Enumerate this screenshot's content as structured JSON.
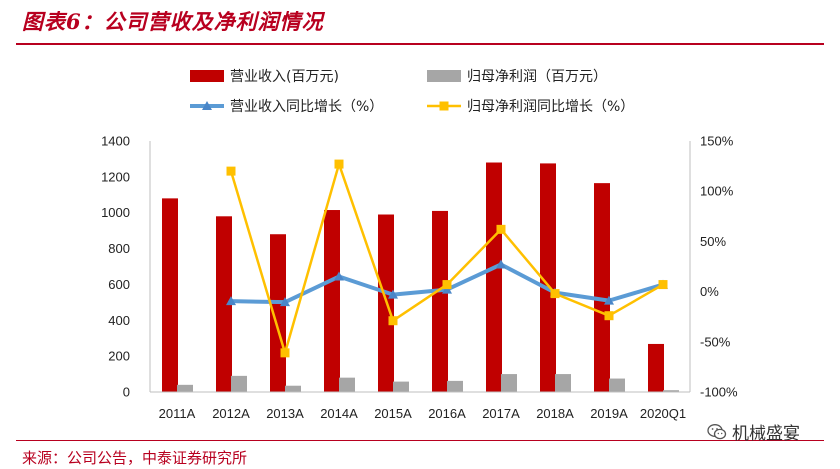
{
  "header": {
    "title": "图表6：公司营收及净利润情况"
  },
  "footer": {
    "source": "来源：公司公告，中泰证券研究所",
    "watermark": "机械盛宴"
  },
  "chart_data": {
    "type": "bar",
    "categories": [
      "2011A",
      "2012A",
      "2013A",
      "2014A",
      "2015A",
      "2016A",
      "2017A",
      "2018A",
      "2019A",
      "2020Q1"
    ],
    "series": [
      {
        "name": "营业收入(百万元)",
        "type": "bar",
        "axis": "left",
        "color": "#c00000",
        "values": [
          1080,
          980,
          880,
          1015,
          990,
          1010,
          1280,
          1275,
          1165,
          268
        ]
      },
      {
        "name": "归母净利润（百万元）",
        "type": "bar",
        "axis": "left",
        "color": "#a6a6a6",
        "values": [
          40,
          90,
          35,
          80,
          58,
          62,
          100,
          100,
          75,
          10
        ]
      },
      {
        "name": "营业收入同比增长（%）",
        "type": "line",
        "axis": "right",
        "color": "#5b9bd5",
        "values": [
          null,
          -9.5,
          -10.5,
          15,
          -3,
          2,
          27,
          -1,
          -9,
          7
        ]
      },
      {
        "name": "归母净利润同比增长（%）",
        "type": "line",
        "axis": "right",
        "color": "#ffc000",
        "values": [
          null,
          120,
          -61,
          127,
          -29,
          7,
          62,
          -2,
          -24,
          7
        ]
      }
    ],
    "left_axis": {
      "min": 0,
      "max": 1400,
      "step": 200,
      "ticks": [
        "0",
        "200",
        "400",
        "600",
        "800",
        "1000",
        "1200",
        "1400"
      ]
    },
    "right_axis": {
      "min": -100,
      "max": 150,
      "step": 50,
      "ticks": [
        "-100%",
        "-50%",
        "0%",
        "50%",
        "100%",
        "150%"
      ]
    },
    "legend_position": "top",
    "grid": false
  }
}
